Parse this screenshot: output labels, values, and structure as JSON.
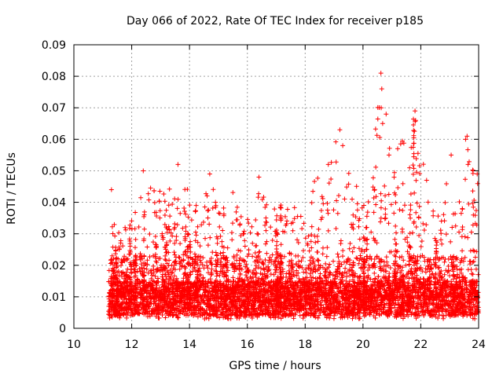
{
  "chart_data": {
    "type": "scatter",
    "title": "Day 066 of 2022, Rate Of TEC Index for receiver p185",
    "xlabel": "GPS time / hours",
    "ylabel": "ROTI / TECUs",
    "xlim": [
      10,
      24
    ],
    "ylim": [
      0,
      0.09
    ],
    "xticks": [
      "10",
      "12",
      "14",
      "16",
      "18",
      "20",
      "22",
      "24"
    ],
    "yticks": [
      "0",
      "0.01",
      "0.02",
      "0.03",
      "0.04",
      "0.05",
      "0.06",
      "0.07",
      "0.08",
      "0.09"
    ],
    "grid": true,
    "marker": "+",
    "series_color": "#ff0000",
    "data_start_hour": 11.2,
    "envelope_hours": [
      11.2,
      11.5,
      12.0,
      12.4,
      12.9,
      13.5,
      13.7,
      14.2,
      14.7,
      15.2,
      15.5,
      16.0,
      16.4,
      17.0,
      17.5,
      18.0,
      18.3,
      18.8,
      19.1,
      19.3,
      19.7,
      20.2,
      20.6,
      20.8,
      21.2,
      21.8,
      22.2,
      22.6,
      23.0,
      23.2,
      23.6,
      24.0
    ],
    "envelope_max_roti": [
      0.044,
      0.03,
      0.035,
      0.05,
      0.044,
      0.05,
      0.052,
      0.04,
      0.049,
      0.038,
      0.044,
      0.036,
      0.048,
      0.04,
      0.044,
      0.038,
      0.05,
      0.052,
      0.063,
      0.058,
      0.046,
      0.04,
      0.081,
      0.067,
      0.057,
      0.069,
      0.047,
      0.04,
      0.055,
      0.038,
      0.061,
      0.049
    ],
    "outliers": [
      {
        "x": 20.62,
        "y": 0.081
      },
      {
        "x": 20.65,
        "y": 0.076
      },
      {
        "x": 20.63,
        "y": 0.07
      },
      {
        "x": 20.68,
        "y": 0.065
      },
      {
        "x": 20.8,
        "y": 0.068
      },
      {
        "x": 21.8,
        "y": 0.069
      },
      {
        "x": 21.82,
        "y": 0.066
      },
      {
        "x": 19.2,
        "y": 0.063
      },
      {
        "x": 19.3,
        "y": 0.058
      },
      {
        "x": 23.6,
        "y": 0.061
      },
      {
        "x": 23.55,
        "y": 0.06
      },
      {
        "x": 23.05,
        "y": 0.055
      },
      {
        "x": 21.2,
        "y": 0.057
      },
      {
        "x": 20.9,
        "y": 0.055
      },
      {
        "x": 23.95,
        "y": 0.049
      },
      {
        "x": 18.8,
        "y": 0.052
      },
      {
        "x": 13.6,
        "y": 0.052
      },
      {
        "x": 12.4,
        "y": 0.05
      },
      {
        "x": 14.7,
        "y": 0.049
      },
      {
        "x": 11.3,
        "y": 0.044
      },
      {
        "x": 22.2,
        "y": 0.047
      },
      {
        "x": 16.4,
        "y": 0.048
      }
    ]
  }
}
